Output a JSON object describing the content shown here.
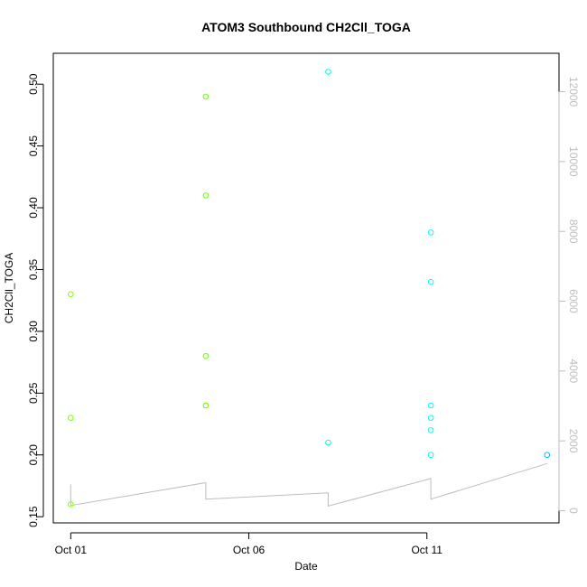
{
  "chart_data": {
    "type": "scatter",
    "title": "ATOM3 Southbound CH2Cll_TOGA",
    "xlabel": "Date",
    "ylabel": "CH2Cll_TOGA",
    "xlim": [
      "2016-09-30T12:14",
      "2016-10-14T17:02"
    ],
    "ylim": [
      0.145,
      0.525
    ],
    "x_ticks": [
      {
        "value": "2016-10-01",
        "label": "Oct 01"
      },
      {
        "value": "2016-10-06",
        "label": "Oct 06"
      },
      {
        "value": "2016-10-11",
        "label": "Oct 11"
      }
    ],
    "y_ticks": [
      0.15,
      0.2,
      0.25,
      0.3,
      0.35,
      0.4,
      0.45,
      0.5
    ],
    "y_tick_labels": [
      "0.15",
      "0.20",
      "0.25",
      "0.30",
      "0.35",
      "0.40",
      "0.45",
      "0.50"
    ],
    "y2lim": [
      -350,
      13100
    ],
    "y2_ticks": [
      0,
      2000,
      4000,
      6000,
      8000,
      10000,
      12000
    ],
    "y2_tick_labels": [
      "0",
      "2000",
      "4000",
      "6000",
      "8000",
      "10000",
      "12000"
    ],
    "points": [
      {
        "x": "2016-10-01T00:00",
        "y": 0.33,
        "color": "#7fff00"
      },
      {
        "x": "2016-10-01T00:00",
        "y": 0.23,
        "color": "#7fff00"
      },
      {
        "x": "2016-10-01T00:00",
        "y": 0.16,
        "color": "#7fff00"
      },
      {
        "x": "2016-10-04T19:00",
        "y": 0.49,
        "color": "#66ff00"
      },
      {
        "x": "2016-10-04T19:00",
        "y": 0.41,
        "color": "#66ff00"
      },
      {
        "x": "2016-10-04T19:00",
        "y": 0.28,
        "color": "#66ff00"
      },
      {
        "x": "2016-10-04T19:00",
        "y": 0.24,
        "color": "#66ff00"
      },
      {
        "x": "2016-10-08T05:30",
        "y": 0.51,
        "color": "#00ffdd"
      },
      {
        "x": "2016-10-08T05:30",
        "y": 0.21,
        "color": "#00ffdd"
      },
      {
        "x": "2016-10-11T02:40",
        "y": 0.38,
        "color": "#00ffff"
      },
      {
        "x": "2016-10-11T02:40",
        "y": 0.34,
        "color": "#00ffff"
      },
      {
        "x": "2016-10-11T02:40",
        "y": 0.24,
        "color": "#00ffff"
      },
      {
        "x": "2016-10-11T02:40",
        "y": 0.23,
        "color": "#00ffff"
      },
      {
        "x": "2016-10-11T02:40",
        "y": 0.22,
        "color": "#00ffff"
      },
      {
        "x": "2016-10-11T02:40",
        "y": 0.2,
        "color": "#00ffff"
      },
      {
        "x": "2016-10-14T09:00",
        "y": 0.2,
        "color": "#00bfff"
      }
    ],
    "secondary_line": {
      "axis": "right",
      "color": "#bdbdbd",
      "points": [
        {
          "x": "2016-10-01T00:00",
          "y2": 750
        },
        {
          "x": "2016-10-01T00:00",
          "y2": 150
        },
        {
          "x": "2016-10-04T19:00",
          "y2": 800
        },
        {
          "x": "2016-10-04T19:00",
          "y2": 330
        },
        {
          "x": "2016-10-08T05:30",
          "y2": 510
        },
        {
          "x": "2016-10-08T05:30",
          "y2": 130
        },
        {
          "x": "2016-10-11T02:40",
          "y2": 920
        },
        {
          "x": "2016-10-11T02:40",
          "y2": 330
        },
        {
          "x": "2016-10-14T09:00",
          "y2": 1350
        }
      ]
    },
    "grid": false,
    "legend": "none"
  }
}
